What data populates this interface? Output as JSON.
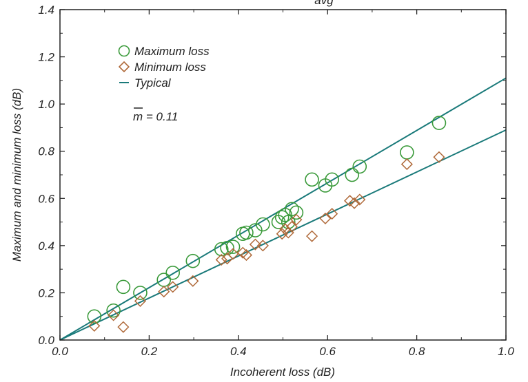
{
  "chart_data": {
    "type": "scatter",
    "title": "",
    "xlabel": "Incoherent loss (dB)",
    "ylabel": "Maximum and minimum loss (dB)",
    "xlim": [
      0.0,
      1.0
    ],
    "ylim": [
      0.0,
      1.4
    ],
    "x_ticks": [
      "0.0",
      "0.2",
      "0.4",
      "0.6",
      "0.8",
      "1.0"
    ],
    "y_ticks": [
      "0.0",
      "0.2",
      "0.4",
      "0.6",
      "0.8",
      "1.0",
      "1.2",
      "1.4"
    ],
    "top_text": "avg",
    "annotation": "m = 0.11",
    "legend_position": "top-left",
    "colors": {
      "max": "#3a9a3a",
      "min": "#b06a3a",
      "typical": "#1a7a7a"
    },
    "series": [
      {
        "name": "Maximum loss",
        "marker": "circle",
        "points": [
          [
            0.077,
            0.1
          ],
          [
            0.12,
            0.125
          ],
          [
            0.142,
            0.225
          ],
          [
            0.18,
            0.2
          ],
          [
            0.233,
            0.255
          ],
          [
            0.253,
            0.285
          ],
          [
            0.298,
            0.335
          ],
          [
            0.362,
            0.385
          ],
          [
            0.375,
            0.39
          ],
          [
            0.388,
            0.395
          ],
          [
            0.41,
            0.45
          ],
          [
            0.418,
            0.455
          ],
          [
            0.438,
            0.465
          ],
          [
            0.455,
            0.49
          ],
          [
            0.49,
            0.5
          ],
          [
            0.498,
            0.52
          ],
          [
            0.505,
            0.53
          ],
          [
            0.512,
            0.5
          ],
          [
            0.52,
            0.555
          ],
          [
            0.53,
            0.54
          ],
          [
            0.565,
            0.68
          ],
          [
            0.595,
            0.655
          ],
          [
            0.61,
            0.68
          ],
          [
            0.655,
            0.7
          ],
          [
            0.672,
            0.735
          ],
          [
            0.778,
            0.795
          ],
          [
            0.85,
            0.92
          ]
        ]
      },
      {
        "name": "Minimum loss",
        "marker": "diamond",
        "points": [
          [
            0.077,
            0.06
          ],
          [
            0.12,
            0.105
          ],
          [
            0.142,
            0.055
          ],
          [
            0.18,
            0.165
          ],
          [
            0.233,
            0.205
          ],
          [
            0.253,
            0.225
          ],
          [
            0.298,
            0.25
          ],
          [
            0.362,
            0.34
          ],
          [
            0.375,
            0.345
          ],
          [
            0.388,
            0.365
          ],
          [
            0.41,
            0.37
          ],
          [
            0.418,
            0.36
          ],
          [
            0.438,
            0.405
          ],
          [
            0.455,
            0.4
          ],
          [
            0.498,
            0.45
          ],
          [
            0.505,
            0.47
          ],
          [
            0.512,
            0.455
          ],
          [
            0.52,
            0.48
          ],
          [
            0.53,
            0.51
          ],
          [
            0.565,
            0.44
          ],
          [
            0.595,
            0.515
          ],
          [
            0.61,
            0.535
          ],
          [
            0.65,
            0.59
          ],
          [
            0.66,
            0.58
          ],
          [
            0.672,
            0.595
          ],
          [
            0.778,
            0.745
          ],
          [
            0.85,
            0.775
          ]
        ]
      },
      {
        "name": "Typical",
        "type": "line",
        "lines": [
          [
            [
              0.0,
              0.0
            ],
            [
              1.0,
              1.11
            ]
          ],
          [
            [
              0.0,
              0.0
            ],
            [
              1.0,
              0.89
            ]
          ]
        ]
      }
    ]
  }
}
